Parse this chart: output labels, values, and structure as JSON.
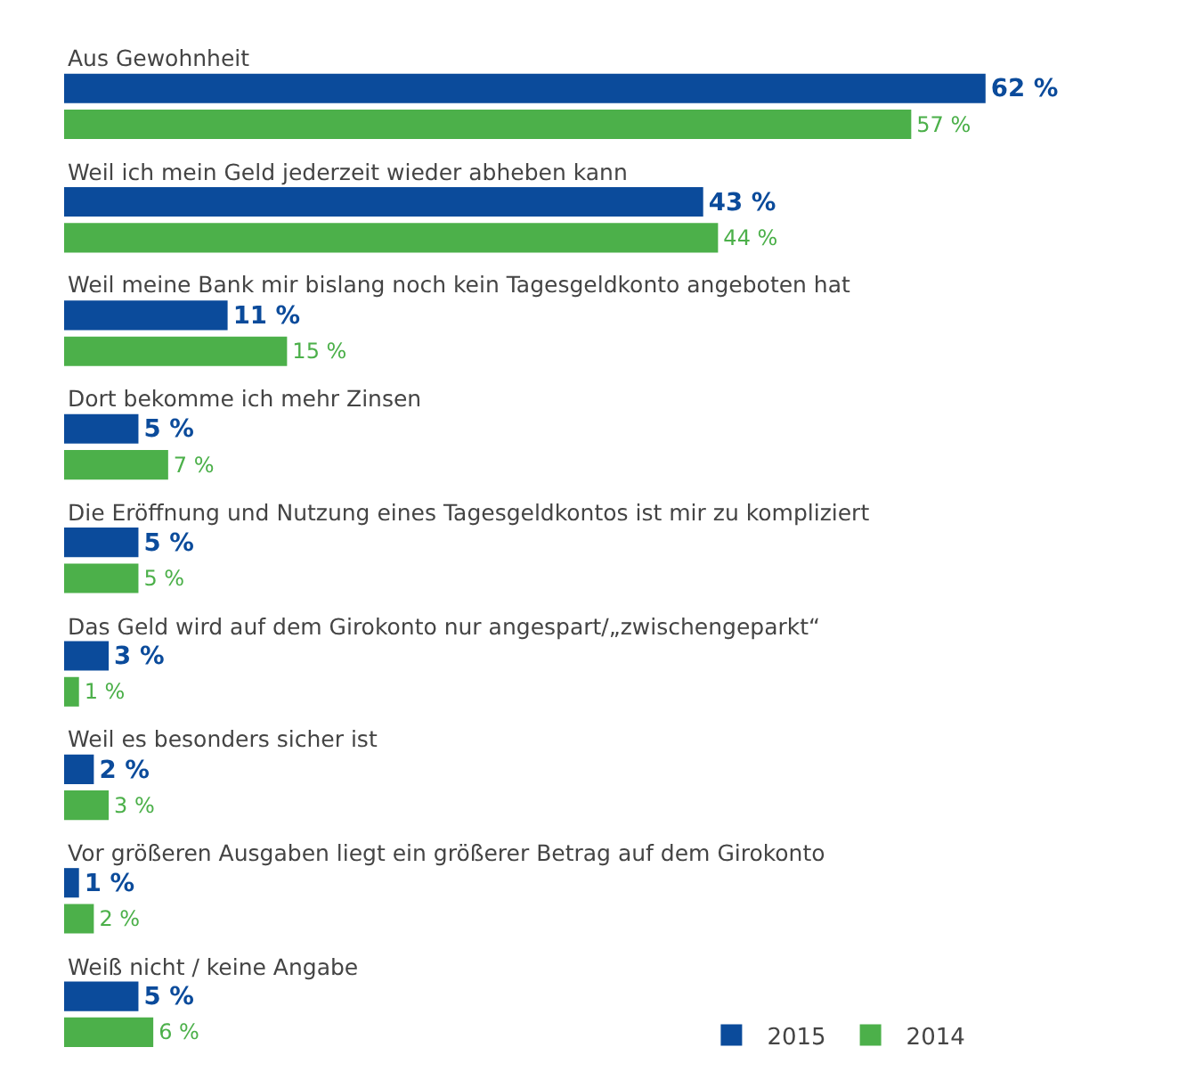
{
  "chart_data": {
    "type": "bar",
    "orientation": "horizontal",
    "categories": [
      "Aus Gewohnheit",
      "Weil ich mein Geld jederzeit wieder abheben kann",
      "Weil meine Bank mir bislang noch kein Tagesgeldkonto angeboten hat",
      "Dort bekomme ich mehr Zinsen",
      "Die Eröffnung und Nutzung eines Tagesgeldkontos ist mir zu kompliziert",
      "Das Geld wird auf dem Girokonto nur angespart/„zwischengeparkt“",
      "Weil es besonders sicher ist",
      "Vor größeren Ausgaben liegt ein größerer Betrag auf dem Girokonto",
      "Weiß nicht / keine Angabe"
    ],
    "series": [
      {
        "name": "2015",
        "color": "#0b4b9b",
        "values": [
          62,
          43,
          11,
          5,
          5,
          3,
          2,
          1,
          5
        ],
        "value_labels": [
          "62 %",
          "43 %",
          "11 %",
          "5 %",
          "5 %",
          "3 %",
          "2 %",
          "1 %",
          "5 %"
        ]
      },
      {
        "name": "2014",
        "color": "#4cb04a",
        "values": [
          57,
          44,
          15,
          7,
          5,
          1,
          3,
          2,
          6
        ],
        "value_labels": [
          "57 %",
          "44 %",
          "15 %",
          "7 %",
          "5 %",
          "1 %",
          "3 %",
          "2 %",
          "6 %"
        ]
      }
    ],
    "legend": "bottom right"
  }
}
